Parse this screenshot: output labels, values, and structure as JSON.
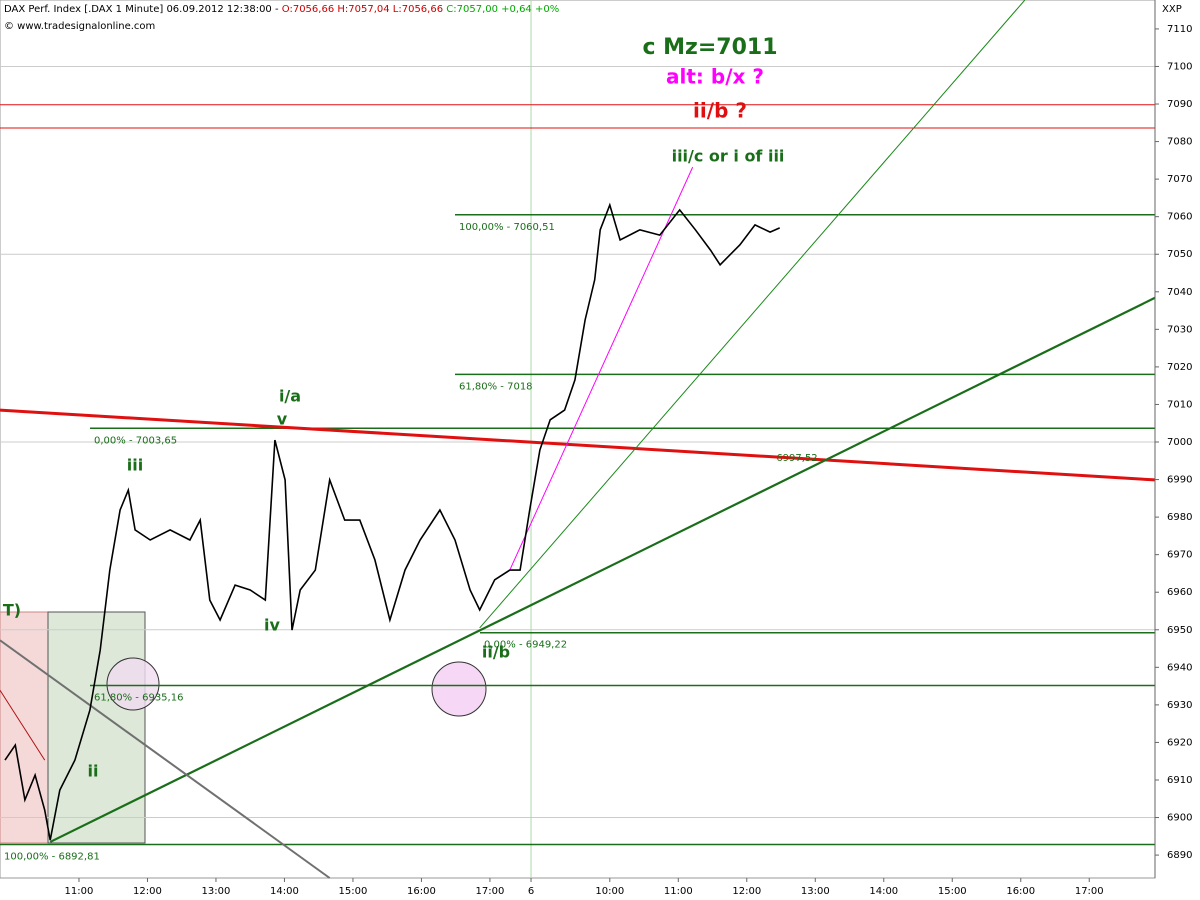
{
  "header": {
    "title": "DAX Perf. Index [.DAX  1 Minute] 06.09.2012 12:38:00 - ",
    "ohlc": "O:7056,66 H:7057,04 L:7056,66 ",
    "change": "C:7057,00 +0,64 +0%",
    "source": "© www.tradesignalonline.com",
    "axis_label": "XXP"
  },
  "chart_data": {
    "type": "line",
    "xlim": [
      -0.153,
      16.71
    ],
    "ylim": [
      6883.9,
      7117.7
    ],
    "xticks": [
      {
        "value": 1,
        "label": "11:00"
      },
      {
        "value": 2,
        "label": "12:00"
      },
      {
        "value": 3,
        "label": "13:00"
      },
      {
        "value": 4,
        "label": "14:00"
      },
      {
        "value": 5,
        "label": "15:00"
      },
      {
        "value": 6,
        "label": "16:00"
      },
      {
        "value": 7,
        "label": "17:00"
      },
      {
        "value": 7.6,
        "label": "6"
      },
      {
        "value": 8.75,
        "label": "10:00"
      },
      {
        "value": 9.75,
        "label": "11:00"
      },
      {
        "value": 10.75,
        "label": "12:00"
      },
      {
        "value": 11.75,
        "label": "13:00"
      },
      {
        "value": 12.75,
        "label": "14:00"
      },
      {
        "value": 13.75,
        "label": "15:00"
      },
      {
        "value": 14.75,
        "label": "16:00"
      },
      {
        "value": 15.75,
        "label": "17:00"
      }
    ],
    "yticks": [
      6890,
      6900,
      6910,
      6920,
      6930,
      6940,
      6950,
      6960,
      6970,
      6980,
      6990,
      7000,
      7010,
      7020,
      7030,
      7040,
      7050,
      7060,
      7070,
      7080,
      7090,
      7100,
      7110
    ],
    "gridlines": [
      6900,
      6950,
      7000,
      7050,
      7100
    ],
    "series": [
      {
        "color": "#000000",
        "x": [
          -0.08,
          0.07,
          0.21,
          0.36,
          0.5,
          0.58,
          0.72,
          0.94,
          1.16,
          1.31,
          1.45,
          1.6,
          1.72,
          1.82,
          2.04,
          2.33,
          2.62,
          2.77,
          2.91,
          3.06,
          3.28,
          3.5,
          3.72,
          3.86,
          4.01,
          4.11,
          4.23,
          4.45,
          4.66,
          4.88,
          5.1,
          5.32,
          5.54,
          5.76,
          5.98,
          6.27,
          6.49,
          6.71,
          6.85,
          7.07,
          7.29,
          7.44,
          7.58,
          7.73,
          7.88,
          8.09,
          8.24,
          8.39,
          8.53,
          8.61,
          8.75,
          8.9,
          9.19,
          9.48,
          9.77,
          10,
          10.22,
          10.36,
          10.65,
          10.87,
          11.09,
          11.23
        ],
        "values": [
          6915.3,
          6919.3,
          6904.7,
          6911.3,
          6902,
          6894,
          6907.3,
          6915.3,
          6928.6,
          6944.6,
          6965.9,
          6981.9,
          6987.2,
          6976.6,
          6973.9,
          6976.6,
          6973.9,
          6979.2,
          6957.9,
          6952.6,
          6961.9,
          6960.6,
          6957.9,
          7000.5,
          6989.9,
          6949.9,
          6960.6,
          6965.9,
          6989.9,
          6979.2,
          6979.2,
          6968.6,
          6952.6,
          6965.9,
          6973.9,
          6981.9,
          6973.9,
          6960.6,
          6955.3,
          6963.3,
          6965.9,
          6965.9,
          6981.9,
          6997.9,
          7005.9,
          7008.5,
          7016.5,
          7032.5,
          7043.2,
          7056.5,
          7063.1,
          7053.8,
          7056.5,
          7055.1,
          7061.8,
          7056.5,
          7051.1,
          7047.2,
          7052.5,
          7057.8,
          7055.9,
          7057
        ]
      }
    ],
    "levels": [
      {
        "label": "100,00% - 7060,51",
        "value": 7060.51,
        "color": "#1a6e1a"
      },
      {
        "label": "61,80% - 7018",
        "value": 7018,
        "color": "#1a6e1a"
      },
      {
        "label": "0,00% - 7003,65",
        "value": 7003.65,
        "color": "#1a6e1a"
      },
      {
        "label": "0,00% - 6949,22",
        "value": 6949.22,
        "color": "#1a6e1a"
      },
      {
        "label": "61,80% - 6935,16",
        "value": 6935.16,
        "color": "#1a6e1a"
      },
      {
        "label": "100,00% - 6892,81",
        "value": 6892.81,
        "color": "#1a6e1a"
      }
    ],
    "red_lines": [
      7089.8,
      7083.6
    ],
    "trendlines": [
      {
        "color": "#e01010",
        "width": 3,
        "x": [
          -0.153,
          16.71
        ],
        "values": [
          7008.5,
          6989.9
        ]
      },
      {
        "color": "#1a6e1a",
        "width": 2.2,
        "x": [
          0.58,
          16.71
        ],
        "values": [
          6893.5,
          7038.4
        ]
      },
      {
        "color": "#1a8a1a",
        "width": 1,
        "x": [
          6.85,
          14.81
        ],
        "values": [
          6950.5,
          7117.7
        ]
      },
      {
        "color": "#ff00ff",
        "width": 1,
        "x": [
          7.29,
          9.96
        ],
        "values": [
          6965.9,
          7073.2
        ]
      },
      {
        "color": "#707070",
        "width": 2,
        "x": [
          -0.153,
          4.66
        ],
        "values": [
          6947.2,
          6883.9
        ]
      },
      {
        "color": "#b01010",
        "width": 1,
        "x": [
          -0.153,
          0.5
        ],
        "values": [
          6933.9,
          6915.3
        ]
      }
    ],
    "annotations": [
      {
        "text": "c   Mz=7011",
        "color": "#1a6e1a"
      },
      {
        "text": "alt: b/x ?",
        "color": "#ff00ff"
      },
      {
        "text": "ii/b ?",
        "color": "#e01010"
      },
      {
        "text": "iii/c or i of iii",
        "color": "#1a6e1a"
      },
      {
        "text": "i/a",
        "color": "#1a6e1a"
      },
      {
        "text": "v",
        "color": "#1a6e1a"
      },
      {
        "text": "iii",
        "color": "#1a6e1a"
      },
      {
        "text": "iv",
        "color": "#1a6e1a"
      },
      {
        "text": "ii",
        "color": "#1a6e1a"
      },
      {
        "text": "ii/b",
        "color": "#1a6e1a"
      },
      {
        "text": "T)",
        "color": "#1a6e1a"
      },
      {
        "text": "6997,52",
        "color": "#1a6e1a"
      }
    ]
  }
}
